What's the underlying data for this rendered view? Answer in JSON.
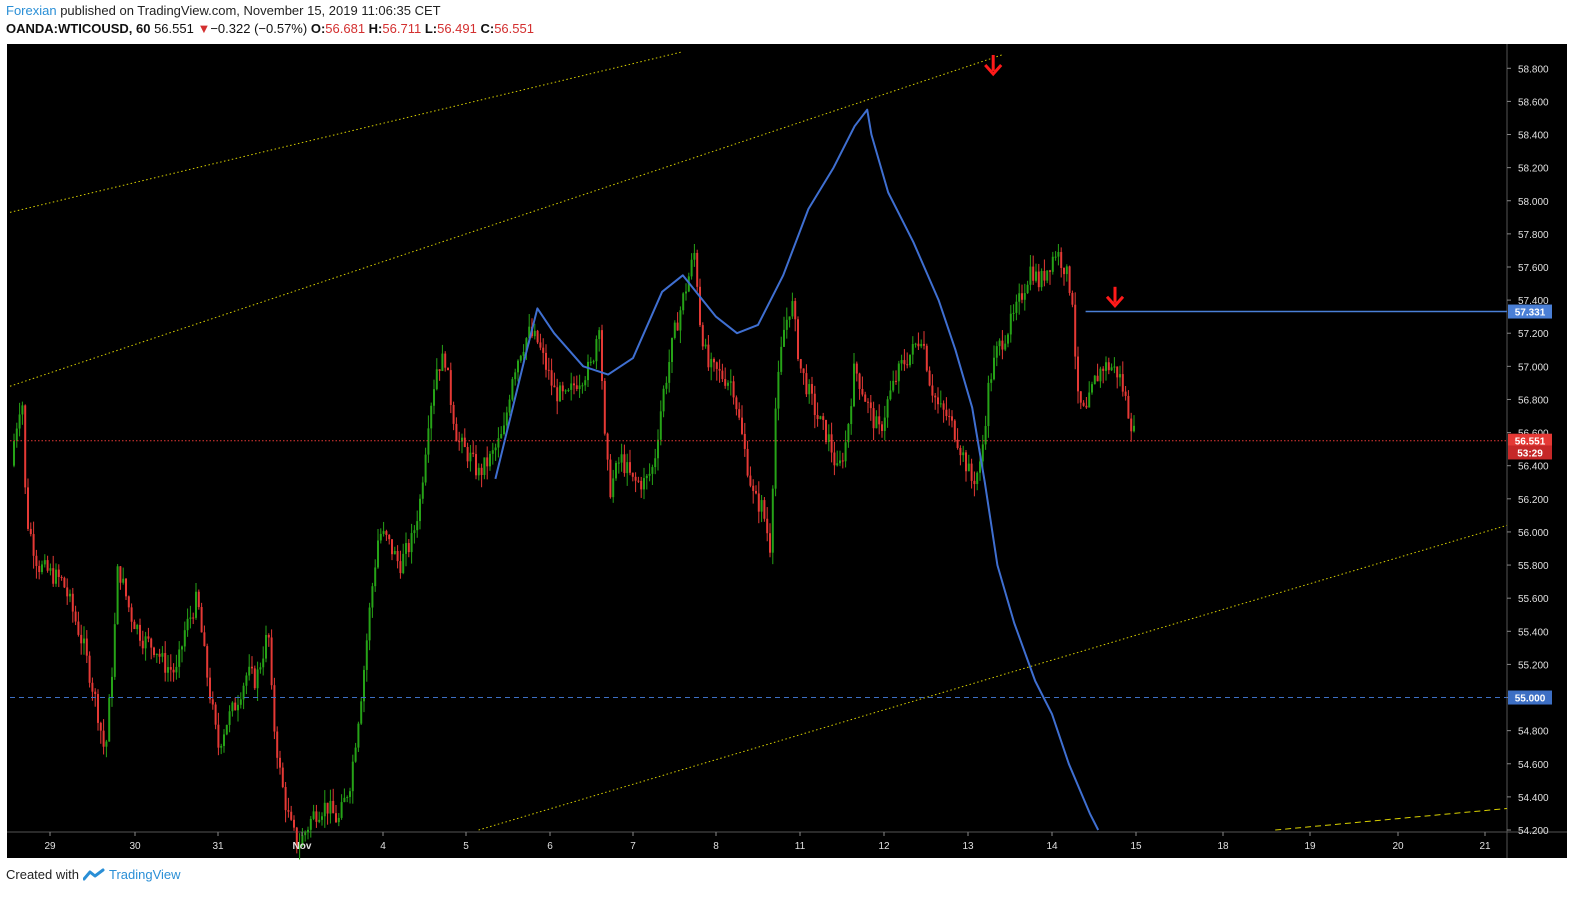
{
  "header": {
    "author": "Forexian",
    "published_text": "published on TradingView.com, November 15, 2019 11:06:35 CET",
    "symbol": "OANDA:WTICOUSD, 60",
    "last": "56.551",
    "change": "−0.322 (−0.57%)",
    "o_label": "O:",
    "o": "56.681",
    "h_label": "H:",
    "h": "56.711",
    "l_label": "L:",
    "l": "56.491",
    "c_label": "C:",
    "c": "56.551"
  },
  "footer": {
    "created_with": "Created with",
    "brand": "TradingView"
  },
  "colors": {
    "background": "#000000",
    "up": "#26a317",
    "down": "#e53935",
    "trendline": "#d8d000",
    "curve": "#3f6fd1",
    "price_line": "#e53935",
    "level_line": "#4a7fd6",
    "dashed_level": "#3d6fc4",
    "arrow": "#ff1a1a"
  },
  "chart_data": {
    "type": "candlestick",
    "timeframe": "60",
    "y_axis": {
      "range": [
        54.2,
        58.85
      ],
      "ticks": [
        "58.800",
        "58.600",
        "58.400",
        "58.200",
        "58.000",
        "57.800",
        "57.600",
        "57.400",
        "57.200",
        "57.000",
        "56.800",
        "56.600",
        "56.400",
        "56.200",
        "56.000",
        "55.800",
        "55.600",
        "55.400",
        "55.200",
        "55.000",
        "54.800",
        "54.600",
        "54.400",
        "54.200"
      ]
    },
    "x_axis": {
      "range_days": [
        28.5,
        21.3
      ],
      "ticks": [
        {
          "label": "29",
          "day": 29
        },
        {
          "label": "30",
          "day": 30
        },
        {
          "label": "31",
          "day": 31
        },
        {
          "label": "Nov",
          "day": 32
        },
        {
          "label": "4",
          "day": 33
        },
        {
          "label": "5",
          "day": 34
        },
        {
          "label": "6",
          "day": 35
        },
        {
          "label": "7",
          "day": 36
        },
        {
          "label": "8",
          "day": 37
        },
        {
          "label": "11",
          "day": 38
        },
        {
          "label": "12",
          "day": 39
        },
        {
          "label": "13",
          "day": 40
        },
        {
          "label": "14",
          "day": 41
        },
        {
          "label": "15",
          "day": 42
        },
        {
          "label": "18",
          "day": 43
        },
        {
          "label": "19",
          "day": 44
        },
        {
          "label": "20",
          "day": 45
        },
        {
          "label": "21",
          "day": 46
        }
      ]
    },
    "price_labels": [
      {
        "name": "level-57331",
        "value": "57.331",
        "price": 57.331,
        "bg": "#4a7fd6"
      },
      {
        "name": "level-55000",
        "value": "55.000",
        "price": 55.0,
        "bg": "#3d6fc4"
      },
      {
        "name": "current-price",
        "value": "56.551",
        "price": 56.551,
        "bg": "#e53935"
      },
      {
        "name": "countdown",
        "value": "53:29",
        "price": 56.48,
        "bg": "#c62828"
      }
    ],
    "path_points": [
      [
        28.5,
        56.4
      ],
      [
        28.65,
        56.85
      ],
      [
        28.7,
        56.1
      ],
      [
        28.85,
        55.8
      ],
      [
        29.0,
        55.75
      ],
      [
        29.15,
        55.7
      ],
      [
        29.25,
        55.55
      ],
      [
        29.4,
        55.3
      ],
      [
        29.55,
        54.95
      ],
      [
        29.65,
        54.65
      ],
      [
        29.75,
        55.3
      ],
      [
        29.8,
        55.8
      ],
      [
        29.95,
        55.5
      ],
      [
        30.1,
        55.35
      ],
      [
        30.25,
        55.3
      ],
      [
        30.35,
        55.2
      ],
      [
        30.5,
        55.15
      ],
      [
        30.6,
        55.4
      ],
      [
        30.75,
        55.6
      ],
      [
        30.85,
        55.2
      ],
      [
        31.0,
        54.7
      ],
      [
        31.1,
        54.85
      ],
      [
        31.2,
        54.95
      ],
      [
        31.35,
        55.15
      ],
      [
        31.45,
        55.1
      ],
      [
        31.6,
        55.4
      ],
      [
        31.65,
        54.9
      ],
      [
        31.75,
        54.5
      ],
      [
        31.85,
        54.25
      ],
      [
        31.95,
        54.1
      ],
      [
        32.05,
        54.2
      ],
      [
        32.15,
        54.3
      ],
      [
        32.3,
        54.35
      ],
      [
        32.45,
        54.25
      ],
      [
        32.6,
        54.5
      ],
      [
        32.75,
        55.1
      ],
      [
        32.85,
        55.6
      ],
      [
        32.95,
        56.0
      ],
      [
        33.05,
        55.95
      ],
      [
        33.2,
        55.8
      ],
      [
        33.35,
        55.95
      ],
      [
        33.45,
        56.2
      ],
      [
        33.55,
        56.7
      ],
      [
        33.65,
        57.0
      ],
      [
        33.75,
        57.05
      ],
      [
        33.8,
        56.85
      ],
      [
        33.9,
        56.55
      ],
      [
        34.05,
        56.45
      ],
      [
        34.15,
        56.35
      ],
      [
        34.3,
        56.45
      ],
      [
        34.45,
        56.6
      ],
      [
        34.55,
        56.95
      ],
      [
        34.65,
        57.1
      ],
      [
        34.75,
        57.2
      ],
      [
        34.85,
        57.15
      ],
      [
        34.95,
        57.0
      ],
      [
        35.05,
        56.85
      ],
      [
        35.2,
        56.8
      ],
      [
        35.3,
        56.9
      ],
      [
        35.4,
        56.95
      ],
      [
        35.5,
        57.0
      ],
      [
        35.6,
        57.3
      ],
      [
        35.65,
        56.6
      ],
      [
        35.72,
        56.25
      ],
      [
        35.85,
        56.45
      ],
      [
        36.0,
        56.3
      ],
      [
        36.15,
        56.3
      ],
      [
        36.25,
        56.4
      ],
      [
        36.35,
        56.8
      ],
      [
        36.5,
        57.2
      ],
      [
        36.65,
        57.5
      ],
      [
        36.75,
        57.7
      ],
      [
        36.8,
        57.3
      ],
      [
        36.9,
        57.0
      ],
      [
        37.05,
        56.95
      ],
      [
        37.2,
        56.9
      ],
      [
        37.3,
        56.6
      ],
      [
        37.45,
        56.2
      ],
      [
        37.55,
        56.15
      ],
      [
        37.65,
        55.9
      ],
      [
        37.7,
        56.7
      ],
      [
        37.8,
        57.2
      ],
      [
        37.9,
        57.4
      ],
      [
        38.0,
        57.0
      ],
      [
        38.1,
        56.85
      ],
      [
        38.2,
        56.7
      ],
      [
        38.35,
        56.55
      ],
      [
        38.45,
        56.35
      ],
      [
        38.55,
        56.55
      ],
      [
        38.65,
        57.0
      ],
      [
        38.75,
        56.85
      ],
      [
        38.85,
        56.7
      ],
      [
        38.95,
        56.6
      ],
      [
        39.05,
        56.8
      ],
      [
        39.2,
        57.0
      ],
      [
        39.35,
        57.1
      ],
      [
        39.45,
        57.2
      ],
      [
        39.55,
        56.9
      ],
      [
        39.65,
        56.75
      ],
      [
        39.75,
        56.7
      ],
      [
        39.85,
        56.6
      ],
      [
        39.95,
        56.45
      ],
      [
        40.05,
        56.3
      ],
      [
        40.15,
        56.4
      ],
      [
        40.25,
        56.9
      ],
      [
        40.35,
        57.1
      ],
      [
        40.45,
        57.2
      ],
      [
        40.55,
        57.3
      ],
      [
        40.65,
        57.45
      ],
      [
        40.75,
        57.6
      ],
      [
        40.85,
        57.5
      ],
      [
        40.95,
        57.6
      ],
      [
        41.05,
        57.7
      ],
      [
        41.15,
        57.6
      ],
      [
        41.25,
        57.4
      ],
      [
        41.3,
        56.8
      ],
      [
        41.4,
        56.7
      ],
      [
        41.5,
        56.9
      ],
      [
        41.6,
        57.0
      ],
      [
        41.7,
        57.0
      ],
      [
        41.8,
        56.95
      ],
      [
        41.9,
        56.75
      ],
      [
        42.0,
        56.55
      ]
    ],
    "down_color_hint": "candles colored red when close < open, green otherwise",
    "trendlines": [
      {
        "name": "upper-channel-top",
        "from": [
          28.5,
          57.93
        ],
        "to": [
          36.6,
          58.9
        ],
        "style": "dotted"
      },
      {
        "name": "upper-channel-bottom",
        "from": [
          28.5,
          56.88
        ],
        "to": [
          40.4,
          58.88
        ],
        "style": "dotted"
      },
      {
        "name": "lower-channel",
        "from": [
          34.15,
          54.2
        ],
        "to": [
          46.3,
          56.04
        ],
        "style": "dotted"
      },
      {
        "name": "future-channel",
        "from": [
          43.6,
          54.2
        ],
        "to": [
          46.3,
          54.33
        ],
        "style": "dashed"
      }
    ],
    "horizontal_lines": [
      {
        "name": "resistance-57331",
        "price": 57.331,
        "from_day": 41.4,
        "to_day": 46.3,
        "style": "solid"
      },
      {
        "name": "current-price-line",
        "price": 56.551,
        "from_day": 28.5,
        "to_day": 46.3,
        "style": "dotted"
      },
      {
        "name": "level-55000-line",
        "price": 55.0,
        "from_day": 28.5,
        "to_day": 46.3,
        "style": "dashed"
      }
    ],
    "curve_points": [
      [
        34.35,
        56.32
      ],
      [
        34.7,
        57.05
      ],
      [
        34.85,
        57.35
      ],
      [
        35.05,
        57.2
      ],
      [
        35.4,
        57.0
      ],
      [
        35.7,
        56.95
      ],
      [
        36.0,
        57.05
      ],
      [
        36.35,
        57.45
      ],
      [
        36.6,
        57.55
      ],
      [
        37.0,
        57.3
      ],
      [
        37.25,
        57.2
      ],
      [
        37.5,
        57.25
      ],
      [
        37.8,
        57.55
      ],
      [
        38.1,
        57.95
      ],
      [
        38.4,
        58.2
      ],
      [
        38.65,
        58.45
      ],
      [
        38.8,
        58.55
      ],
      [
        38.85,
        58.4
      ],
      [
        39.05,
        58.05
      ],
      [
        39.35,
        57.75
      ],
      [
        39.65,
        57.4
      ],
      [
        39.85,
        57.1
      ],
      [
        40.05,
        56.75
      ],
      [
        40.2,
        56.3
      ],
      [
        40.35,
        55.8
      ],
      [
        40.55,
        55.45
      ],
      [
        40.8,
        55.1
      ],
      [
        41.0,
        54.9
      ],
      [
        41.2,
        54.6
      ],
      [
        41.45,
        54.3
      ],
      [
        41.55,
        54.2
      ]
    ],
    "arrows": [
      {
        "name": "down-arrow-1",
        "day": 40.3,
        "price": 58.82
      },
      {
        "name": "down-arrow-2",
        "day": 41.75,
        "price": 57.42
      }
    ]
  }
}
